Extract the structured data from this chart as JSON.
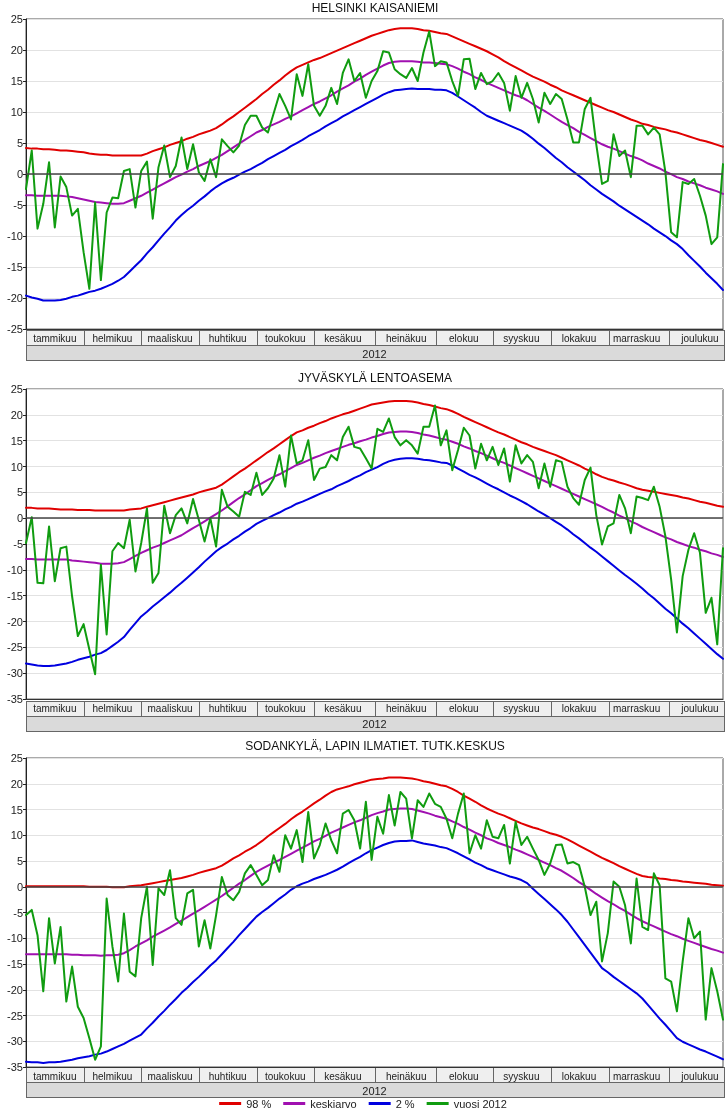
{
  "chart_data": [
    {
      "type": "line",
      "title": "HELSINKI KAISANIEMI",
      "xlabel": "2012",
      "categories": [
        null,
        null,
        null,
        null,
        null,
        "tammikuu",
        null,
        null,
        null,
        null,
        null,
        null,
        null,
        null,
        null,
        "helmikuu",
        null,
        null,
        null,
        null,
        null,
        null,
        null,
        null,
        null,
        "maaliskuu",
        null,
        null,
        null,
        null,
        null,
        null,
        null,
        null,
        null,
        "huhtikuu",
        null,
        null,
        null,
        null,
        null,
        null,
        null,
        null,
        null,
        "toukokuu",
        null,
        null,
        null,
        null,
        null,
        null,
        null,
        null,
        null,
        "kesäkuu",
        null,
        null,
        null,
        null,
        null,
        null,
        null,
        null,
        null,
        null,
        "heinäkuu",
        null,
        null,
        null,
        null,
        null,
        null,
        null,
        null,
        null,
        "elokuu",
        null,
        null,
        null,
        null,
        null,
        null,
        null,
        null,
        null,
        "syyskuu",
        null,
        null,
        null,
        null,
        null,
        null,
        null,
        null,
        null,
        "lokakuu",
        null,
        null,
        null,
        null,
        null,
        null,
        null,
        null,
        null,
        "marraskuu",
        null,
        null,
        null,
        null,
        null,
        null,
        null,
        null,
        null,
        null,
        "joulukuu",
        null,
        null,
        null,
        null
      ],
      "ylim": [
        -25,
        25
      ],
      "yticks": [
        -25,
        -20,
        -15,
        -10,
        -5,
        0,
        5,
        10,
        15,
        20,
        25
      ],
      "grid": "y",
      "ref_lines": [
        {
          "axis": "y",
          "value": 0,
          "color": "#444444"
        }
      ],
      "series": [
        {
          "color": "#e00000",
          "values": [
            4.2,
            4.1,
            4.1,
            4.0,
            4.0,
            3.9,
            3.8,
            3.8,
            3.7,
            3.6,
            3.5,
            3.3,
            3.2,
            3.1,
            3.1,
            3.0,
            3.0,
            3.0,
            3.0,
            3.0,
            3.0,
            3.3,
            3.7,
            4.0,
            4.3,
            4.7,
            5.0,
            5.3,
            5.7,
            6.0,
            6.4,
            6.7,
            7.0,
            7.4,
            8.0,
            8.7,
            9.3,
            10.0,
            10.7,
            11.4,
            12.1,
            12.9,
            13.6,
            14.4,
            15.1,
            15.9,
            16.6,
            17.2,
            17.6,
            18.0,
            18.4,
            18.7,
            19.1,
            19.5,
            19.9,
            20.3,
            20.7,
            21.1,
            21.5,
            21.9,
            22.3,
            22.6,
            22.9,
            23.2,
            23.4,
            23.5,
            23.5,
            23.5,
            23.4,
            23.2,
            23.1,
            22.9,
            22.7,
            22.6,
            22.2,
            21.8,
            21.4,
            21.0,
            20.6,
            20.2,
            19.8,
            19.3,
            18.8,
            18.2,
            17.7,
            17.2,
            16.7,
            16.2,
            15.7,
            15.3,
            14.9,
            14.4,
            14.0,
            13.5,
            13.1,
            12.7,
            12.3,
            11.9,
            11.5,
            11.1,
            10.7,
            10.3,
            10.0,
            9.6,
            9.2,
            8.8,
            8.5,
            8.1,
            7.9,
            7.6,
            7.4,
            7.2,
            6.9,
            6.7,
            6.4,
            6.1,
            5.8,
            5.5,
            5.3,
            5.0,
            4.7,
            4.4
          ]
        },
        {
          "color": "#a010b0",
          "values": [
            -3.4,
            -3.4,
            -3.5,
            -3.5,
            -3.5,
            -3.5,
            -3.5,
            -3.6,
            -3.7,
            -3.9,
            -4.1,
            -4.3,
            -4.5,
            -4.6,
            -4.7,
            -4.8,
            -4.8,
            -4.7,
            -4.3,
            -3.9,
            -3.5,
            -3.0,
            -2.5,
            -2.0,
            -1.5,
            -1.0,
            -0.5,
            -0.1,
            0.4,
            0.8,
            1.3,
            1.7,
            2.1,
            2.6,
            3.1,
            3.7,
            4.3,
            4.9,
            5.5,
            6.1,
            6.7,
            7.1,
            7.6,
            8.0,
            8.4,
            8.9,
            9.3,
            9.8,
            10.3,
            10.8,
            11.3,
            11.7,
            12.2,
            12.7,
            13.3,
            13.8,
            14.3,
            14.9,
            15.4,
            16.0,
            16.5,
            17.0,
            17.5,
            17.9,
            18.1,
            18.2,
            18.2,
            18.2,
            18.1,
            18.0,
            18.0,
            17.9,
            17.8,
            17.7,
            17.4,
            17.0,
            16.5,
            16.1,
            15.6,
            15.2,
            14.7,
            14.3,
            13.9,
            13.5,
            13.1,
            12.7,
            12.4,
            11.9,
            11.3,
            10.7,
            10.2,
            9.6,
            9.0,
            8.4,
            7.9,
            7.4,
            6.8,
            6.3,
            5.8,
            5.3,
            4.8,
            4.4,
            4.1,
            3.7,
            3.3,
            2.9,
            2.6,
            2.2,
            1.7,
            1.3,
            0.9,
            0.4,
            0.0,
            -0.5,
            -0.8,
            -1.2,
            -1.5,
            -1.8,
            -2.2,
            -2.5,
            -2.8,
            -3.2
          ]
        },
        {
          "color": "#0000e0",
          "values": [
            -19.6,
            -19.9,
            -20.1,
            -20.4,
            -20.4,
            -20.4,
            -20.3,
            -20.1,
            -19.8,
            -19.6,
            -19.3,
            -19.0,
            -18.8,
            -18.5,
            -18.1,
            -17.7,
            -17.2,
            -16.6,
            -15.7,
            -14.8,
            -13.9,
            -12.8,
            -11.8,
            -10.7,
            -9.6,
            -8.6,
            -7.5,
            -6.6,
            -5.8,
            -5.1,
            -4.3,
            -3.6,
            -2.8,
            -2.1,
            -1.5,
            -1.0,
            -0.6,
            -0.1,
            0.4,
            0.8,
            1.3,
            1.8,
            2.4,
            2.9,
            3.4,
            3.9,
            4.5,
            5.0,
            5.5,
            6.1,
            6.6,
            7.1,
            7.7,
            8.2,
            8.7,
            9.3,
            9.8,
            10.3,
            10.8,
            11.3,
            11.8,
            12.3,
            12.8,
            13.2,
            13.5,
            13.6,
            13.7,
            13.8,
            13.7,
            13.7,
            13.7,
            13.6,
            13.6,
            13.5,
            13.1,
            12.5,
            11.9,
            11.3,
            10.7,
            10.0,
            9.4,
            9.0,
            8.6,
            8.2,
            7.8,
            7.4,
            7.0,
            6.4,
            5.7,
            4.9,
            4.2,
            3.4,
            2.6,
            1.9,
            1.1,
            0.4,
            -0.3,
            -1.0,
            -1.8,
            -2.5,
            -3.2,
            -3.8,
            -4.4,
            -5.1,
            -5.7,
            -6.3,
            -6.9,
            -7.5,
            -8.1,
            -8.8,
            -9.4,
            -10.0,
            -10.7,
            -11.3,
            -12.1,
            -13.1,
            -14.0,
            -14.9,
            -15.9,
            -16.8,
            -17.7,
            -18.7
          ]
        },
        {
          "color": "#109c10",
          "values": [
            -2.4,
            3.8,
            -8.8,
            -4.8,
            1.9,
            -8.6,
            -0.4,
            -2.1,
            -6.7,
            -5.6,
            -12.6,
            -18.5,
            -4.6,
            -17.1,
            -6.2,
            -3.8,
            -3.9,
            0.5,
            0.8,
            -5.4,
            0.5,
            2.0,
            -7.2,
            1.1,
            4.6,
            -0.5,
            1.3,
            5.9,
            0.8,
            4.8,
            0.3,
            -1.1,
            2.4,
            -0.5,
            5.6,
            4.5,
            3.5,
            4.6,
            7.9,
            9.4,
            9.4,
            7.5,
            6.7,
            9.8,
            12.9,
            11.0,
            8.8,
            16.1,
            12.6,
            17.7,
            11.0,
            9.4,
            11.0,
            13.9,
            11.3,
            16.3,
            18.5,
            15.0,
            16.3,
            12.3,
            15.0,
            16.6,
            19.8,
            19.6,
            16.9,
            16.1,
            15.5,
            17.1,
            15.0,
            19.6,
            23.0,
            17.4,
            18.2,
            18.0,
            15.0,
            12.6,
            18.5,
            18.6,
            13.7,
            16.3,
            14.5,
            15.0,
            16.3,
            14.7,
            10.2,
            15.8,
            12.3,
            14.7,
            12.1,
            8.3,
            13.1,
            11.3,
            12.9,
            12.1,
            8.8,
            5.1,
            5.1,
            10.5,
            12.3,
            4.8,
            -1.6,
            -1.1,
            6.4,
            2.9,
            3.8,
            -0.5,
            7.8,
            7.8,
            6.4,
            7.5,
            6.4,
            0.3,
            -9.4,
            -10.2,
            -1.3,
            -1.6,
            -0.8,
            -3.5,
            -6.7,
            -11.3,
            -10.2,
            1.6
          ]
        }
      ]
    },
    {
      "type": "line",
      "title": "JYVÄSKYLÄ LENTOASEMA",
      "xlabel": "2012",
      "categories": [
        null,
        null,
        null,
        null,
        null,
        "tammikuu",
        null,
        null,
        null,
        null,
        null,
        null,
        null,
        null,
        null,
        "helmikuu",
        null,
        null,
        null,
        null,
        null,
        null,
        null,
        null,
        null,
        "maaliskuu",
        null,
        null,
        null,
        null,
        null,
        null,
        null,
        null,
        null,
        "huhtikuu",
        null,
        null,
        null,
        null,
        null,
        null,
        null,
        null,
        null,
        "toukokuu",
        null,
        null,
        null,
        null,
        null,
        null,
        null,
        null,
        null,
        "kesäkuu",
        null,
        null,
        null,
        null,
        null,
        null,
        null,
        null,
        null,
        null,
        "heinäkuu",
        null,
        null,
        null,
        null,
        null,
        null,
        null,
        null,
        null,
        "elokuu",
        null,
        null,
        null,
        null,
        null,
        null,
        null,
        null,
        null,
        "syyskuu",
        null,
        null,
        null,
        null,
        null,
        null,
        null,
        null,
        null,
        "lokakuu",
        null,
        null,
        null,
        null,
        null,
        null,
        null,
        null,
        null,
        "marraskuu",
        null,
        null,
        null,
        null,
        null,
        null,
        null,
        null,
        null,
        null,
        "joulukuu",
        null,
        null,
        null,
        null
      ],
      "ylim": [
        -35,
        25
      ],
      "yticks": [
        -35,
        -30,
        -25,
        -20,
        -15,
        -10,
        -5,
        0,
        5,
        10,
        15,
        20,
        25
      ],
      "grid": "y",
      "ref_lines": [
        {
          "axis": "y",
          "value": 0,
          "color": "#444444"
        }
      ],
      "series": [
        {
          "color": "#e00000",
          "values": [
            2.0,
            2.0,
            1.9,
            1.9,
            1.9,
            1.8,
            1.7,
            1.7,
            1.7,
            1.6,
            1.6,
            1.6,
            1.5,
            1.5,
            1.5,
            1.5,
            1.5,
            1.5,
            1.7,
            1.8,
            1.9,
            2.2,
            2.5,
            2.8,
            3.1,
            3.4,
            3.7,
            4.0,
            4.3,
            4.6,
            5.0,
            5.3,
            5.6,
            5.9,
            6.5,
            7.3,
            8.1,
            8.9,
            9.6,
            10.4,
            11.2,
            12.0,
            12.8,
            13.5,
            14.3,
            15.1,
            15.9,
            16.6,
            17.0,
            17.5,
            17.9,
            18.4,
            18.8,
            19.3,
            19.7,
            20.1,
            20.4,
            20.8,
            21.2,
            21.6,
            22.0,
            22.2,
            22.4,
            22.6,
            22.7,
            22.7,
            22.7,
            22.6,
            22.4,
            22.1,
            21.9,
            21.6,
            21.3,
            21.1,
            20.7,
            20.2,
            19.6,
            19.1,
            18.6,
            18.1,
            17.6,
            17.1,
            16.6,
            16.2,
            15.7,
            15.2,
            14.7,
            14.3,
            13.8,
            13.4,
            13.0,
            12.6,
            12.2,
            11.7,
            11.2,
            10.7,
            10.2,
            9.6,
            9.1,
            8.5,
            8.0,
            7.6,
            7.3,
            6.9,
            6.6,
            6.2,
            5.8,
            5.5,
            5.3,
            5.1,
            4.9,
            4.7,
            4.5,
            4.3,
            4.0,
            3.8,
            3.5,
            3.2,
            3.0,
            2.7,
            2.4,
            2.2
          ]
        },
        {
          "color": "#a010b0",
          "values": [
            -7.9,
            -7.9,
            -8.0,
            -8.0,
            -8.0,
            -8.0,
            -8.0,
            -8.0,
            -8.2,
            -8.3,
            -8.4,
            -8.5,
            -8.6,
            -8.8,
            -8.8,
            -8.8,
            -8.7,
            -8.5,
            -7.9,
            -7.3,
            -6.7,
            -6.2,
            -5.7,
            -5.3,
            -4.8,
            -4.3,
            -3.8,
            -3.3,
            -2.6,
            -1.9,
            -1.3,
            -0.6,
            0.1,
            0.8,
            1.5,
            2.3,
            3.1,
            3.9,
            4.6,
            5.4,
            6.2,
            6.8,
            7.4,
            8.0,
            8.5,
            9.1,
            9.7,
            10.3,
            10.7,
            11.2,
            11.7,
            12.1,
            12.6,
            13.0,
            13.4,
            13.8,
            14.2,
            14.5,
            14.9,
            15.2,
            15.6,
            15.9,
            16.3,
            16.6,
            16.7,
            16.8,
            16.8,
            16.7,
            16.5,
            16.2,
            16.0,
            15.7,
            15.4,
            15.2,
            14.8,
            14.4,
            13.9,
            13.5,
            13.0,
            12.6,
            12.1,
            11.6,
            11.1,
            10.7,
            10.2,
            9.7,
            9.2,
            8.7,
            8.2,
            7.7,
            7.2,
            6.7,
            6.2,
            5.7,
            5.2,
            4.7,
            4.2,
            3.7,
            3.2,
            2.7,
            2.2,
            1.6,
            1.1,
            0.5,
            0.0,
            -0.6,
            -1.1,
            -1.7,
            -2.2,
            -2.7,
            -3.2,
            -3.7,
            -4.1,
            -4.6,
            -5.0,
            -5.4,
            -5.7,
            -6.1,
            -6.4,
            -6.8,
            -7.1,
            -7.5
          ]
        },
        {
          "color": "#0000e0",
          "values": [
            -28.1,
            -28.3,
            -28.5,
            -28.6,
            -28.6,
            -28.5,
            -28.3,
            -28.1,
            -27.8,
            -27.4,
            -27.1,
            -26.8,
            -26.4,
            -26.1,
            -25.5,
            -24.7,
            -23.9,
            -23.0,
            -21.6,
            -20.3,
            -19.0,
            -18.1,
            -17.1,
            -16.2,
            -15.3,
            -14.4,
            -13.4,
            -12.5,
            -11.5,
            -10.5,
            -9.5,
            -8.4,
            -7.4,
            -6.4,
            -5.6,
            -4.9,
            -4.1,
            -3.4,
            -2.6,
            -1.9,
            -1.1,
            -0.5,
            0.0,
            0.6,
            1.1,
            1.7,
            2.2,
            2.8,
            3.2,
            3.7,
            4.2,
            4.7,
            5.2,
            5.6,
            6.2,
            6.7,
            7.2,
            7.8,
            8.3,
            8.9,
            9.4,
            9.9,
            10.5,
            11.0,
            11.3,
            11.5,
            11.6,
            11.6,
            11.5,
            11.3,
            11.2,
            11.0,
            10.8,
            10.7,
            10.2,
            9.6,
            9.0,
            8.4,
            7.9,
            7.3,
            6.7,
            6.1,
            5.6,
            5.0,
            4.4,
            3.9,
            3.3,
            2.7,
            2.0,
            1.3,
            0.7,
            0.0,
            -0.7,
            -1.4,
            -2.2,
            -3.1,
            -3.9,
            -4.8,
            -5.7,
            -6.5,
            -7.4,
            -8.3,
            -9.2,
            -10.1,
            -11.0,
            -11.8,
            -12.7,
            -13.6,
            -14.6,
            -15.5,
            -16.5,
            -17.5,
            -18.4,
            -19.4,
            -20.4,
            -21.3,
            -22.3,
            -23.3,
            -24.3,
            -25.3,
            -26.3,
            -27.2
          ]
        },
        {
          "color": "#109c10",
          "values": [
            -4.8,
            0.2,
            -12.5,
            -12.6,
            -1.6,
            -12.2,
            -5.8,
            -5.5,
            -15.1,
            -22.8,
            -20.5,
            -25.4,
            -30.2,
            -9.0,
            -22.5,
            -6.4,
            -4.8,
            -5.8,
            -0.3,
            -10.3,
            -4.8,
            1.9,
            -12.5,
            -10.6,
            2.4,
            -2.9,
            0.6,
            1.9,
            -1.0,
            3.7,
            -0.3,
            -4.5,
            0.0,
            -5.5,
            5.5,
            2.2,
            1.3,
            0.3,
            5.1,
            4.5,
            8.8,
            4.5,
            5.8,
            7.7,
            12.2,
            6.1,
            16.0,
            10.6,
            11.2,
            15.1,
            7.4,
            9.6,
            9.9,
            12.2,
            11.2,
            15.7,
            17.7,
            13.8,
            13.5,
            11.6,
            9.6,
            17.3,
            16.7,
            19.3,
            15.7,
            14.1,
            15.1,
            14.1,
            12.5,
            17.7,
            17.7,
            21.8,
            14.1,
            17.0,
            9.3,
            13.2,
            17.5,
            16.0,
            9.6,
            14.4,
            11.2,
            13.8,
            10.3,
            13.5,
            7.1,
            14.1,
            10.6,
            12.2,
            10.9,
            5.8,
            10.6,
            6.1,
            11.2,
            10.9,
            6.1,
            3.9,
            2.6,
            7.4,
            9.8,
            0.6,
            -5.1,
            -1.6,
            -1.0,
            4.5,
            1.9,
            -2.9,
            4.2,
            3.9,
            3.5,
            6.1,
            2.2,
            -3.5,
            -11.9,
            -22.1,
            -11.2,
            -6.1,
            -2.9,
            -6.7,
            -18.3,
            -15.4,
            -24.4,
            -5.8
          ]
        }
      ]
    },
    {
      "type": "line",
      "title": "SODANKYLÄ, LAPIN ILMATIET. TUTK.KESKUS",
      "xlabel": "2012",
      "legend": "bottom",
      "categories": [
        null,
        null,
        null,
        null,
        null,
        "tammikuu",
        null,
        null,
        null,
        null,
        null,
        null,
        null,
        null,
        null,
        "helmikuu",
        null,
        null,
        null,
        null,
        null,
        null,
        null,
        null,
        null,
        "maaliskuu",
        null,
        null,
        null,
        null,
        null,
        null,
        null,
        null,
        null,
        "huhtikuu",
        null,
        null,
        null,
        null,
        null,
        null,
        null,
        null,
        null,
        "toukokuu",
        null,
        null,
        null,
        null,
        null,
        null,
        null,
        null,
        null,
        "kesäkuu",
        null,
        null,
        null,
        null,
        null,
        null,
        null,
        null,
        null,
        null,
        "heinäkuu",
        null,
        null,
        null,
        null,
        null,
        null,
        null,
        null,
        null,
        "elokuu",
        null,
        null,
        null,
        null,
        null,
        null,
        null,
        null,
        null,
        "syyskuu",
        null,
        null,
        null,
        null,
        null,
        null,
        null,
        null,
        null,
        "lokakuu",
        null,
        null,
        null,
        null,
        null,
        null,
        null,
        null,
        null,
        "marraskuu",
        null,
        null,
        null,
        null,
        null,
        null,
        null,
        null,
        null,
        null,
        "joulukuu",
        null,
        null,
        null,
        null
      ],
      "ylim": [
        -35,
        25
      ],
      "yticks": [
        -35,
        -30,
        -25,
        -20,
        -15,
        -10,
        -5,
        0,
        5,
        10,
        15,
        20,
        25
      ],
      "grid": "y",
      "ref_lines": [
        {
          "axis": "y",
          "value": 0,
          "color": "#444444"
        }
      ],
      "series": [
        {
          "name": "98 %",
          "color": "#e00000",
          "values": [
            0.1,
            0.1,
            0.1,
            0.1,
            0.1,
            0.1,
            0.1,
            0.1,
            0.1,
            0.1,
            0.1,
            0.0,
            0.0,
            0.0,
            0.0,
            -0.1,
            -0.1,
            -0.1,
            0.1,
            0.2,
            0.3,
            0.5,
            0.7,
            0.9,
            1.1,
            1.3,
            1.5,
            1.7,
            2.0,
            2.3,
            2.7,
            3.0,
            3.3,
            3.6,
            4.1,
            4.8,
            5.5,
            6.1,
            6.8,
            7.4,
            8.1,
            8.9,
            9.8,
            10.6,
            11.4,
            12.2,
            13.1,
            13.9,
            14.6,
            15.4,
            16.2,
            16.9,
            17.7,
            18.4,
            18.9,
            19.2,
            19.5,
            19.9,
            20.2,
            20.5,
            20.8,
            20.9,
            21.0,
            21.2,
            21.2,
            21.2,
            21.1,
            21.0,
            20.8,
            20.5,
            20.3,
            20.0,
            19.7,
            19.5,
            19.0,
            18.4,
            17.7,
            17.1,
            16.5,
            15.8,
            15.2,
            14.7,
            14.2,
            13.8,
            13.3,
            12.8,
            12.3,
            11.9,
            11.5,
            11.2,
            10.8,
            10.4,
            10.1,
            9.7,
            9.2,
            8.6,
            8.0,
            7.4,
            6.8,
            6.2,
            5.6,
            5.1,
            4.6,
            4.0,
            3.5,
            3.0,
            2.5,
            2.1,
            1.9,
            1.8,
            1.6,
            1.5,
            1.3,
            1.2,
            1.0,
            0.9,
            0.8,
            0.7,
            0.6,
            0.4,
            0.3,
            0.2
          ]
        },
        {
          "name": "keskiarvo",
          "color": "#a010b0",
          "values": [
            -13.1,
            -13.1,
            -13.1,
            -13.1,
            -13.1,
            -13.1,
            -13.1,
            -13.1,
            -13.2,
            -13.2,
            -13.3,
            -13.3,
            -13.3,
            -13.4,
            -13.3,
            -13.3,
            -13.2,
            -12.9,
            -12.3,
            -11.6,
            -11.0,
            -10.4,
            -9.7,
            -9.1,
            -8.5,
            -7.9,
            -7.2,
            -6.6,
            -5.9,
            -5.2,
            -4.6,
            -3.9,
            -3.2,
            -2.5,
            -1.8,
            -1.0,
            -0.2,
            0.6,
            1.3,
            2.1,
            2.9,
            3.5,
            4.1,
            4.7,
            5.2,
            5.8,
            6.4,
            7.0,
            7.6,
            8.2,
            8.8,
            9.3,
            9.9,
            10.5,
            11.0,
            11.5,
            12.0,
            12.5,
            12.9,
            13.4,
            13.9,
            14.3,
            14.6,
            15.0,
            15.1,
            15.2,
            15.2,
            15.1,
            14.8,
            14.5,
            14.2,
            13.8,
            13.5,
            13.2,
            12.7,
            12.2,
            11.6,
            11.1,
            10.5,
            10.0,
            9.4,
            9.0,
            8.5,
            8.1,
            7.7,
            7.2,
            6.8,
            6.3,
            5.8,
            5.2,
            4.7,
            4.2,
            3.6,
            3.1,
            2.4,
            1.7,
            0.9,
            0.2,
            -0.6,
            -1.4,
            -2.1,
            -2.8,
            -3.4,
            -4.1,
            -4.7,
            -5.4,
            -6.1,
            -6.7,
            -7.2,
            -7.7,
            -8.2,
            -8.7,
            -9.2,
            -9.6,
            -10.1,
            -10.5,
            -10.9,
            -11.3,
            -11.7,
            -12.1,
            -12.4,
            -12.8
          ]
        },
        {
          "name": "2 %",
          "color": "#0000e0",
          "values": [
            -34.0,
            -34.1,
            -34.1,
            -34.2,
            -34.1,
            -34.1,
            -34.0,
            -33.8,
            -33.6,
            -33.3,
            -33.1,
            -32.9,
            -32.6,
            -32.4,
            -32.0,
            -31.5,
            -31.0,
            -30.5,
            -29.9,
            -29.3,
            -28.7,
            -27.5,
            -26.4,
            -25.2,
            -24.1,
            -22.9,
            -21.8,
            -20.6,
            -19.6,
            -18.5,
            -17.5,
            -16.4,
            -15.3,
            -14.3,
            -13.1,
            -11.9,
            -10.7,
            -9.4,
            -8.2,
            -7.0,
            -5.8,
            -4.9,
            -4.1,
            -3.2,
            -2.3,
            -1.5,
            -0.6,
            0.1,
            0.6,
            1.0,
            1.5,
            1.9,
            2.3,
            2.8,
            3.3,
            3.9,
            4.6,
            5.2,
            5.8,
            6.5,
            7.1,
            7.6,
            8.1,
            8.5,
            8.8,
            8.9,
            8.9,
            9.0,
            8.7,
            8.4,
            8.2,
            8.0,
            7.7,
            7.5,
            7.0,
            6.5,
            5.9,
            5.3,
            4.7,
            4.2,
            3.6,
            3.2,
            2.8,
            2.4,
            2.0,
            1.7,
            1.3,
            0.7,
            -0.4,
            -1.4,
            -2.4,
            -3.4,
            -4.4,
            -5.5,
            -6.8,
            -8.3,
            -9.8,
            -11.3,
            -12.8,
            -14.3,
            -15.8,
            -16.6,
            -17.5,
            -18.3,
            -19.1,
            -19.9,
            -20.7,
            -21.7,
            -23.0,
            -24.3,
            -25.6,
            -26.8,
            -28.1,
            -29.4,
            -30.1,
            -30.6,
            -31.1,
            -31.6,
            -32.0,
            -32.5,
            -33.0,
            -33.5
          ]
        },
        {
          "name": "vuosi 2012",
          "color": "#109c10",
          "values": [
            -5.5,
            -4.5,
            -9.4,
            -20.3,
            -6.1,
            -14.9,
            -7.8,
            -22.3,
            -15.5,
            -23.3,
            -25.5,
            -29.4,
            -33.6,
            -31.0,
            -2.3,
            -11.6,
            -18.4,
            -5.2,
            -16.5,
            -17.4,
            -6.1,
            0.0,
            -15.2,
            -0.3,
            -1.6,
            3.2,
            -6.1,
            -7.4,
            -1.3,
            -0.6,
            -11.6,
            -6.5,
            -12.0,
            -5.5,
            1.9,
            -1.6,
            -2.6,
            -1.0,
            2.6,
            4.2,
            2.3,
            0.3,
            1.3,
            6.1,
            2.9,
            10.0,
            7.4,
            11.0,
            4.8,
            14.5,
            5.5,
            8.1,
            12.3,
            9.0,
            6.5,
            14.2,
            14.9,
            12.9,
            7.4,
            16.5,
            5.2,
            13.6,
            10.3,
            17.8,
            11.9,
            18.4,
            17.1,
            9.4,
            16.8,
            15.5,
            18.1,
            16.1,
            15.5,
            13.2,
            9.4,
            14.2,
            18.1,
            6.5,
            10.0,
            7.4,
            12.9,
            9.7,
            9.4,
            12.0,
            4.5,
            12.6,
            8.1,
            9.7,
            7.4,
            5.2,
            2.3,
            4.5,
            8.1,
            8.2,
            4.5,
            4.8,
            4.2,
            0.0,
            -5.5,
            -2.9,
            -14.5,
            -9.0,
            1.0,
            0.0,
            -3.6,
            -11.0,
            1.6,
            -7.8,
            -8.4,
            2.6,
            0.3,
            -17.8,
            -18.4,
            -24.2,
            -14.5,
            -6.1,
            -10.0,
            -8.7,
            -25.8,
            -15.8,
            -20.3,
            -25.8
          ]
        }
      ]
    }
  ]
}
